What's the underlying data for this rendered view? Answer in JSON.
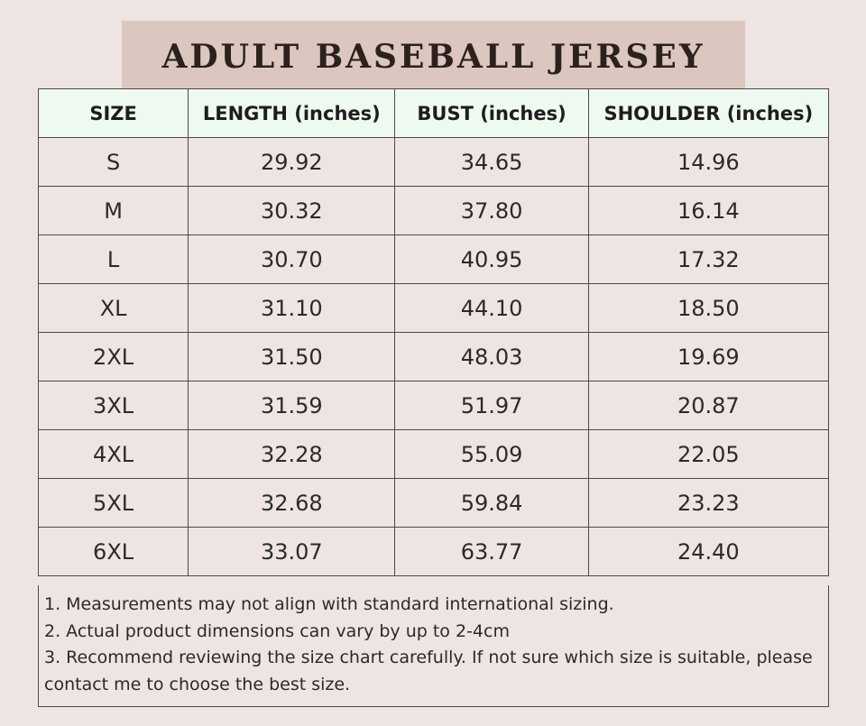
{
  "title": "ADULT BASEBALL JERSEY",
  "table": {
    "headers": [
      "SIZE",
      "LENGTH (inches)",
      "BUST (inches)",
      "SHOULDER (inches)"
    ],
    "rows": [
      [
        "S",
        "29.92",
        "34.65",
        "14.96"
      ],
      [
        "M",
        "30.32",
        "37.80",
        "16.14"
      ],
      [
        "L",
        "30.70",
        "40.95",
        "17.32"
      ],
      [
        "XL",
        "31.10",
        "44.10",
        "18.50"
      ],
      [
        "2XL",
        "31.50",
        "48.03",
        "19.69"
      ],
      [
        "3XL",
        "31.59",
        "51.97",
        "20.87"
      ],
      [
        "4XL",
        "32.28",
        "55.09",
        "22.05"
      ],
      [
        "5XL",
        "32.68",
        "59.84",
        "23.23"
      ],
      [
        "6XL",
        "33.07",
        "63.77",
        "24.40"
      ]
    ]
  },
  "notes": [
    "1. Measurements may not align with standard international sizing.",
    "2. Actual product dimensions can vary by up to 2-4cm",
    "3. Recommend reviewing the size chart carefully. If not sure which size is suitable, please contact me to choose the best size."
  ],
  "colors": {
    "background": "#eee4e2",
    "title_band": "#dcc6c0",
    "header_row": "#eef9ef",
    "border": "#4a4a4a"
  }
}
